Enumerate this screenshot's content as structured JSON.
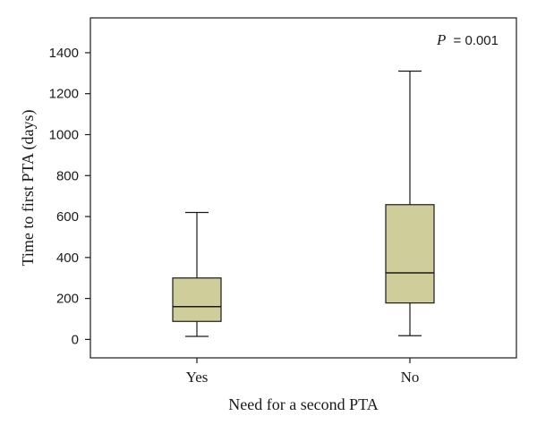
{
  "chart_data": {
    "type": "box",
    "categories": [
      "Yes",
      "No"
    ],
    "boxes": [
      {
        "category": "Yes",
        "min": 15,
        "q1": 88,
        "median": 160,
        "q3": 300,
        "max": 620
      },
      {
        "category": "No",
        "min": 18,
        "q1": 178,
        "median": 325,
        "q3": 658,
        "max": 1310
      }
    ],
    "xlabel": "Need for a second PTA",
    "ylabel": "Time to first PTA (days)",
    "ylim": [
      -90,
      1570
    ],
    "yticks": [
      0,
      200,
      400,
      600,
      800,
      1000,
      1200,
      1400
    ],
    "annotation": {
      "label": "P",
      "value": "= 0.001"
    },
    "box_fill": "#cfcd9a",
    "line_color": "#1a1a1a",
    "grid": false
  }
}
